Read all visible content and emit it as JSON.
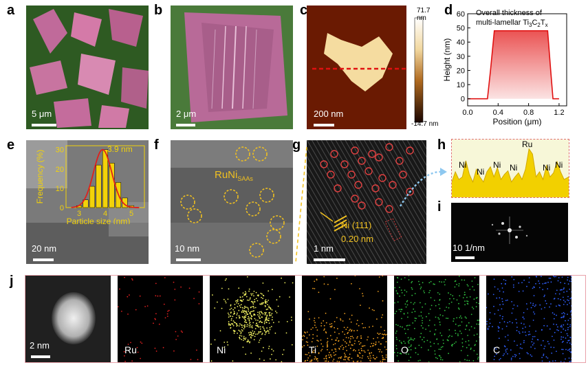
{
  "panel_labels": [
    "a",
    "b",
    "c",
    "d",
    "e",
    "f",
    "g",
    "h",
    "i",
    "j"
  ],
  "panel_a": {
    "scale": "5 μm"
  },
  "panel_b": {
    "scale": "2 μm"
  },
  "panel_c": {
    "scale": "200 nm",
    "colorbar_max": "71.7 nm",
    "colorbar_min": "-14.7 nm"
  },
  "panel_d": {
    "annotation_line1": "Overall thickness of",
    "annotation_line2": "multi-lamellar Ti",
    "annotation_sub1": "3",
    "annotation_mid": "C",
    "annotation_sub2": "2",
    "annotation_end": "T",
    "annotation_sub3": "x"
  },
  "panel_e": {
    "scale": "20 nm",
    "peak_label": "3.9 nm"
  },
  "panel_f": {
    "scale": "10 nm",
    "label": "RuNi",
    "label_sub": "SAAs"
  },
  "panel_g": {
    "scale": "1 nm",
    "plane": "Ni (111)",
    "spacing": "0.20 nm"
  },
  "panel_h": {
    "peak_labels": [
      "Ni",
      "Ni",
      "Ni",
      "Ni",
      "Ru",
      "Ni",
      "Ni"
    ]
  },
  "panel_i": {
    "scale": "10 1/nm"
  },
  "panel_j": {
    "scale": "2 nm",
    "elements": [
      "Ru",
      "Ni",
      "Ti",
      "O",
      "C"
    ]
  },
  "colors": {
    "afm_line": "#e01010",
    "hist_bar": "#f2d20a",
    "fit": "#e0201c",
    "circle_red": "#e04040",
    "circle_yellow": "#f0c020",
    "eds_ru": "#e02020",
    "eds_ni": "#f0f060",
    "eds_ti": "#f0a020",
    "eds_o": "#30c040",
    "eds_c": "#3060ff",
    "frame_j": "#e8a0a8",
    "line_scan": "#f2d000"
  },
  "chart_data": [
    {
      "type": "line",
      "panel": "d",
      "xlabel": "Position (μm)",
      "ylabel": "Height (nm)",
      "xlim": [
        0.0,
        1.3
      ],
      "ylim": [
        -5,
        60
      ],
      "xticks": [
        0.0,
        0.4,
        0.8,
        1.2
      ],
      "yticks": [
        0,
        10,
        20,
        30,
        40,
        50,
        60
      ],
      "x": [
        0.0,
        0.1,
        0.2,
        0.26,
        0.3,
        0.35,
        0.5,
        0.7,
        0.9,
        1.05,
        1.09,
        1.12,
        1.2
      ],
      "y": [
        0,
        0,
        0,
        0,
        20,
        48,
        48,
        48,
        48,
        48,
        20,
        0,
        0
      ]
    },
    {
      "type": "bar",
      "panel": "e",
      "xlabel": "Particle size (nm)",
      "ylabel": "Frequency (%)",
      "xlim": [
        2.5,
        5.5
      ],
      "ylim": [
        0,
        32
      ],
      "xticks": [
        3,
        4,
        5
      ],
      "yticks": [
        0,
        10,
        20,
        30
      ],
      "x": [
        3.0,
        3.25,
        3.5,
        3.75,
        4.0,
        4.25,
        4.5,
        4.75,
        5.0
      ],
      "values": [
        1,
        4,
        11,
        22,
        30,
        23,
        13,
        5,
        1
      ],
      "fit_peak": 3.9
    },
    {
      "type": "line",
      "panel": "h",
      "x": [
        0,
        0.03,
        0.06,
        0.09,
        0.12,
        0.15,
        0.18,
        0.21,
        0.24,
        0.27,
        0.3,
        0.33,
        0.36,
        0.39,
        0.42,
        0.45,
        0.48,
        0.51,
        0.54,
        0.57,
        0.6,
        0.63,
        0.66,
        0.69,
        0.72,
        0.75,
        0.78,
        0.81,
        0.84,
        0.87,
        0.9,
        0.93,
        0.96,
        1.0
      ],
      "y": [
        0.3,
        0.5,
        0.35,
        0.4,
        0.72,
        0.45,
        0.3,
        0.55,
        0.4,
        0.3,
        0.5,
        0.6,
        0.4,
        0.58,
        0.35,
        0.45,
        0.52,
        0.3,
        0.4,
        0.48,
        0.35,
        0.55,
        0.95,
        0.85,
        0.4,
        0.5,
        0.35,
        0.62,
        0.4,
        0.48,
        0.7,
        0.5,
        0.35,
        0.4
      ]
    }
  ]
}
